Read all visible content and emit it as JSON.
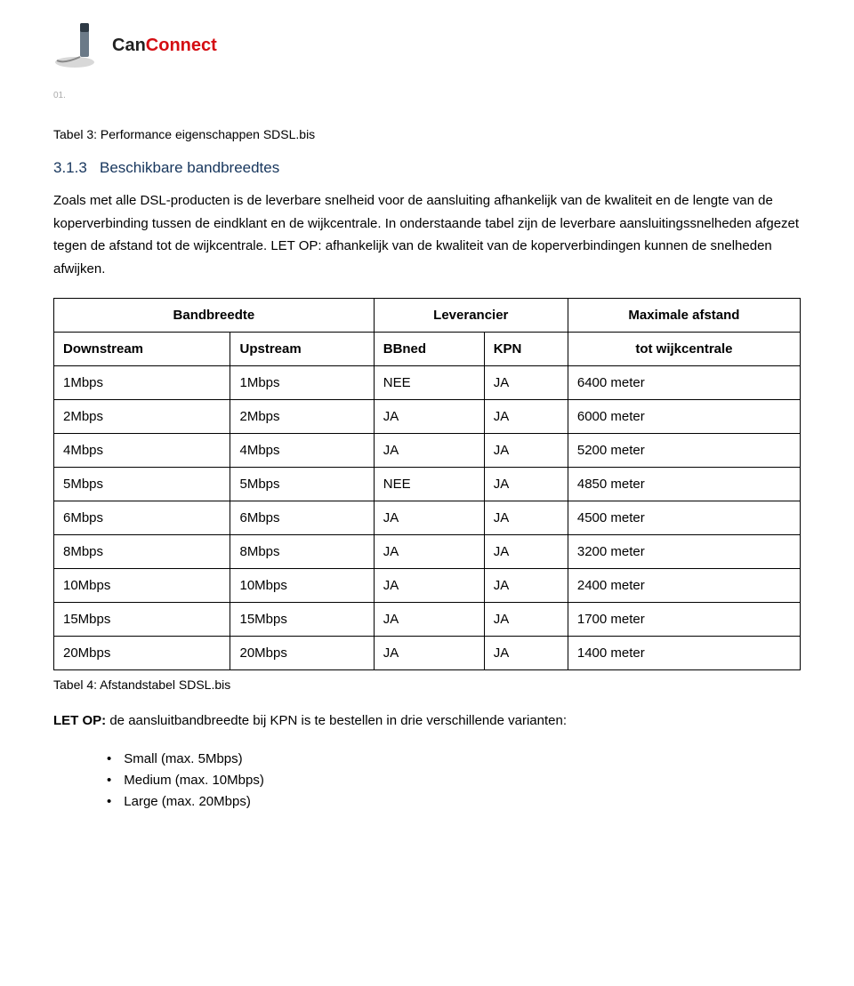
{
  "logo": {
    "part1": "Can",
    "part2": "Connect"
  },
  "smallMark": "01.",
  "caption1": "Tabel 3: Performance eigenschappen SDSL.bis",
  "section": {
    "number": "3.1.3",
    "title": "Beschikbare bandbreedtes"
  },
  "paragraph": "Zoals met alle DSL-producten is de leverbare snelheid voor de aansluiting afhankelijk van de kwaliteit en de lengte van de koperverbinding tussen de eindklant en de wijkcentrale. In onderstaande tabel zijn de leverbare aansluitingssnelheden afgezet tegen de afstand tot de wijkcentrale. LET OP: afhankelijk van de kwaliteit van de koperverbindingen kunnen de snelheden afwijken.",
  "table": {
    "head1": {
      "bandwidth": "Bandbreedte",
      "supplier": "Leverancier",
      "maxdist": "Maximale afstand"
    },
    "head2": {
      "down": "Downstream",
      "up": "Upstream",
      "bbned": "BBned",
      "kpn": "KPN",
      "tot": "tot wijkcentrale"
    },
    "rows": [
      {
        "down": "1Mbps",
        "up": "1Mbps",
        "bbned": "NEE",
        "kpn": "JA",
        "dist": "6400 meter"
      },
      {
        "down": "2Mbps",
        "up": "2Mbps",
        "bbned": "JA",
        "kpn": "JA",
        "dist": "6000 meter"
      },
      {
        "down": "4Mbps",
        "up": "4Mbps",
        "bbned": "JA",
        "kpn": "JA",
        "dist": "5200 meter"
      },
      {
        "down": "5Mbps",
        "up": "5Mbps",
        "bbned": "NEE",
        "kpn": "JA",
        "dist": "4850 meter"
      },
      {
        "down": "6Mbps",
        "up": "6Mbps",
        "bbned": "JA",
        "kpn": "JA",
        "dist": "4500 meter"
      },
      {
        "down": "8Mbps",
        "up": "8Mbps",
        "bbned": "JA",
        "kpn": "JA",
        "dist": "3200 meter"
      },
      {
        "down": "10Mbps",
        "up": "10Mbps",
        "bbned": "JA",
        "kpn": "JA",
        "dist": "2400 meter"
      },
      {
        "down": "15Mbps",
        "up": "15Mbps",
        "bbned": "JA",
        "kpn": "JA",
        "dist": "1700 meter"
      },
      {
        "down": "20Mbps",
        "up": "20Mbps",
        "bbned": "JA",
        "kpn": "JA",
        "dist": "1400 meter"
      }
    ]
  },
  "caption2": "Tabel 4: Afstandstabel SDSL.bis",
  "letop": {
    "bold": "LET OP:",
    "rest": " de aansluitbandbreedte bij KPN is te bestellen in drie verschillende varianten:"
  },
  "bullets": [
    "Small (max. 5Mbps)",
    "Medium (max. 10Mbps)",
    "Large (max. 20Mbps)"
  ]
}
